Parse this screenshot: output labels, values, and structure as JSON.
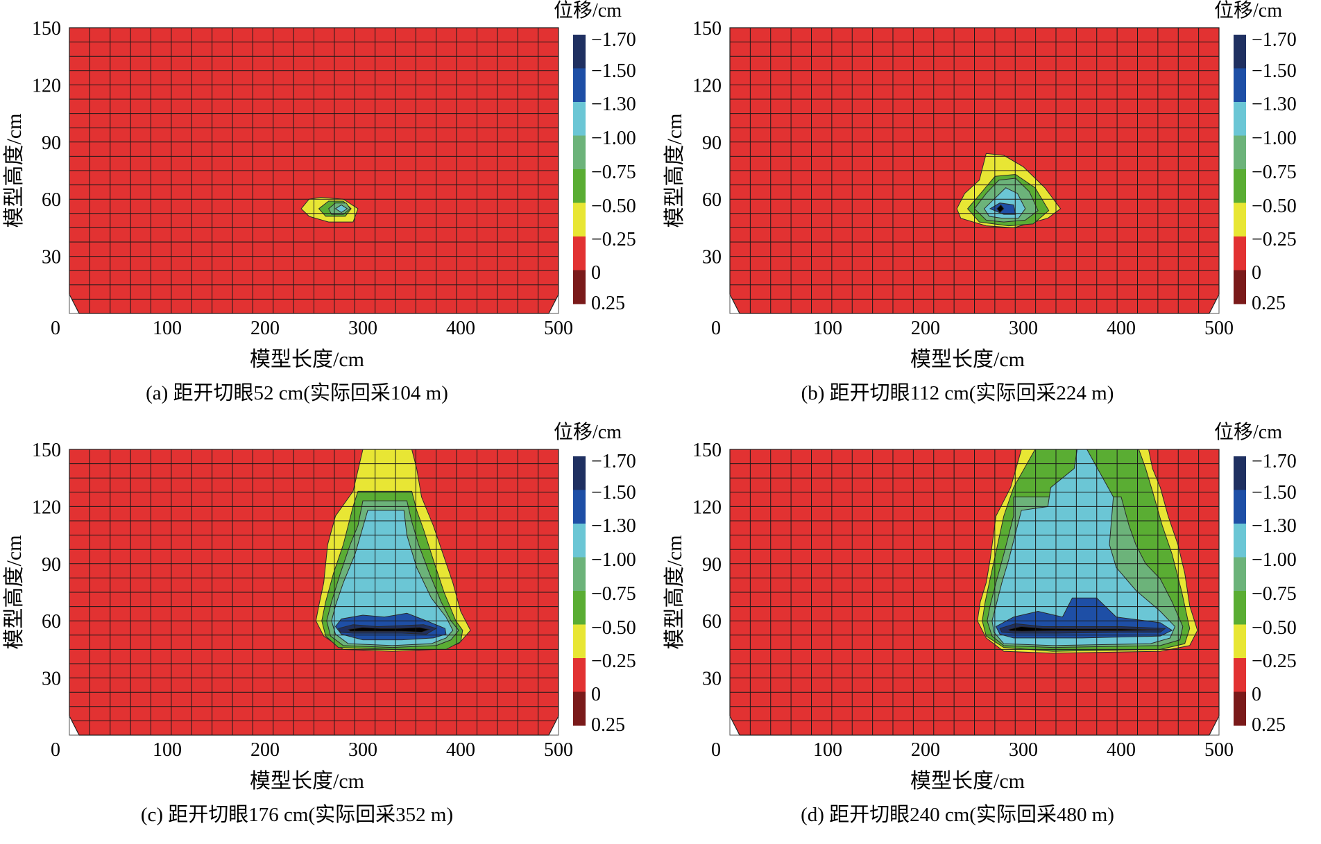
{
  "legend": {
    "title": "位移/cm",
    "labels": [
      "-1.70",
      "-1.50",
      "-1.30",
      "-1.00",
      "-0.75",
      "-0.50",
      "-0.25",
      "0",
      "0.25"
    ],
    "colors": [
      "#1f3061",
      "#1e4fa6",
      "#6bc6d5",
      "#6cb37a",
      "#5aad33",
      "#e8e634",
      "#e23232",
      "#7a1a1a"
    ],
    "level_thresholds": [
      -1.5,
      -1.3,
      -1.0,
      -0.75,
      -0.5,
      -0.25,
      0.0
    ]
  },
  "chart_data": [
    {
      "type": "heatmap",
      "caption": "(a)  距开切眼52 cm(实际回采104 m)",
      "xlabel": "模型长度/cm",
      "ylabel": "模型高度/cm",
      "xlim": [
        0,
        500
      ],
      "ylim": [
        0,
        150
      ],
      "xticks": [
        "0",
        "100",
        "200",
        "300",
        "400",
        "500"
      ],
      "yticks": [
        "30",
        "60",
        "90",
        "120",
        "150"
      ],
      "grid": true,
      "zones": [
        {
          "level": -0.25,
          "x": [
            237,
            245,
            257,
            280,
            295,
            290,
            265,
            245
          ],
          "y": [
            55,
            60,
            61,
            60,
            55,
            48,
            48,
            51
          ]
        },
        {
          "level": -0.5,
          "x": [
            255,
            265,
            280,
            288,
            282,
            262
          ],
          "y": [
            55,
            59,
            59,
            55,
            51,
            51
          ]
        },
        {
          "level": -0.75,
          "x": [
            265,
            272,
            283,
            287,
            280,
            268
          ],
          "y": [
            55,
            58,
            58,
            55,
            52,
            52
          ]
        },
        {
          "level": -1.0,
          "x": [
            272,
            278,
            284,
            278
          ],
          "y": [
            55,
            57,
            55,
            53
          ]
        }
      ]
    },
    {
      "type": "heatmap",
      "caption": "(b)  距开切眼112 cm(实际回采224 m)",
      "xlabel": "模型长度/cm",
      "ylabel": "模型高度/cm",
      "xlim": [
        0,
        500
      ],
      "ylim": [
        0,
        150
      ],
      "xticks": [
        "0",
        "100",
        "200",
        "300",
        "400",
        "500"
      ],
      "yticks": [
        "30",
        "60",
        "90",
        "120",
        "150"
      ],
      "grid": true,
      "zones": [
        {
          "level": -0.25,
          "x": [
            232,
            240,
            255,
            262,
            280,
            300,
            322,
            338,
            325,
            290,
            262,
            236
          ],
          "y": [
            55,
            63,
            70,
            84,
            83,
            77,
            66,
            55,
            50,
            45,
            46,
            50
          ]
        },
        {
          "level": -0.5,
          "x": [
            243,
            258,
            271,
            292,
            312,
            326,
            310,
            285,
            255
          ],
          "y": [
            55,
            64,
            72,
            73,
            66,
            54,
            47,
            46,
            48
          ]
        },
        {
          "level": -0.75,
          "x": [
            250,
            262,
            275,
            292,
            306,
            315,
            302,
            280,
            262
          ],
          "y": [
            55,
            63,
            70,
            71,
            64,
            54,
            49,
            48,
            49
          ]
        },
        {
          "level": -1.0,
          "x": [
            260,
            270,
            282,
            294,
            302,
            295,
            278,
            265
          ],
          "y": [
            55,
            60,
            66,
            63,
            55,
            50,
            50,
            51
          ]
        },
        {
          "level": -1.3,
          "x": [
            266,
            276,
            290,
            292,
            280
          ],
          "y": [
            55,
            58,
            57,
            52,
            52
          ]
        },
        {
          "level": -1.7,
          "x": [
            273,
            277,
            280,
            276
          ],
          "y": [
            55,
            57,
            55,
            53
          ]
        }
      ]
    },
    {
      "type": "heatmap",
      "caption": "(c)  距开切眼176 cm(实际回采352 m)",
      "xlabel": "模型长度/cm",
      "ylabel": "模型高度/cm",
      "xlim": [
        0,
        500
      ],
      "ylim": [
        0,
        150
      ],
      "xticks": [
        "0",
        "100",
        "200",
        "300",
        "400",
        "500"
      ],
      "yticks": [
        "30",
        "60",
        "90",
        "120",
        "150"
      ],
      "grid": true,
      "zones": [
        {
          "level": -0.25,
          "x": [
            252,
            255,
            260,
            264,
            272,
            290,
            300,
            350,
            355,
            360,
            372,
            382,
            392,
            400,
            410,
            398,
            375,
            330,
            280,
            260
          ],
          "y": [
            60,
            68,
            80,
            100,
            115,
            128,
            150,
            150,
            140,
            125,
            110,
            95,
            80,
            65,
            55,
            48,
            45,
            44,
            45,
            52
          ]
        },
        {
          "level": -0.5,
          "x": [
            258,
            262,
            270,
            280,
            290,
            295,
            350,
            355,
            362,
            372,
            383,
            395,
            402,
            400,
            385,
            330,
            275,
            262
          ],
          "y": [
            60,
            70,
            85,
            100,
            120,
            128,
            128,
            118,
            108,
            92,
            75,
            60,
            55,
            49,
            45,
            45,
            46,
            52
          ]
        },
        {
          "level": -0.75,
          "x": [
            263,
            268,
            277,
            287,
            295,
            300,
            345,
            350,
            357,
            368,
            380,
            390,
            398,
            390,
            375,
            330,
            280,
            267
          ],
          "y": [
            60,
            70,
            85,
            100,
            110,
            123,
            123,
            112,
            100,
            85,
            70,
            60,
            55,
            50,
            47,
            46,
            47,
            52
          ]
        },
        {
          "level": -1.0,
          "x": [
            268,
            272,
            280,
            292,
            305,
            342,
            345,
            355,
            370,
            385,
            392,
            385,
            370,
            330,
            285,
            272
          ],
          "y": [
            60,
            68,
            80,
            95,
            118,
            118,
            105,
            88,
            72,
            62,
            55,
            51,
            48,
            47,
            48,
            53
          ]
        },
        {
          "level": -1.3,
          "x": [
            272,
            278,
            300,
            322,
            345,
            365,
            384,
            385,
            372,
            340,
            300,
            278
          ],
          "y": [
            57,
            61,
            63,
            62,
            64,
            60,
            56,
            53,
            51,
            50,
            50,
            53
          ]
        },
        {
          "level": -1.5,
          "x": [
            275,
            290,
            315,
            340,
            362,
            375,
            365,
            340,
            315,
            290,
            277
          ],
          "y": [
            56,
            58,
            57,
            57.5,
            58,
            56,
            53,
            53.5,
            53.5,
            53.5,
            54
          ]
        },
        {
          "level": -1.7,
          "x": [
            285,
            300,
            318,
            335,
            358,
            368,
            360,
            340,
            318,
            300,
            287
          ],
          "y": [
            55.5,
            56.5,
            56,
            56,
            56.5,
            55.5,
            54,
            54.5,
            54.5,
            54.5,
            54.5
          ]
        }
      ]
    },
    {
      "type": "heatmap",
      "caption": "(d)  距开切眼240 cm(实际回采480 m)",
      "xlabel": "模型长度/cm",
      "ylabel": "模型高度/cm",
      "xlim": [
        0,
        500
      ],
      "ylim": [
        0,
        150
      ],
      "xticks": [
        "0",
        "100",
        "200",
        "300",
        "400",
        "500"
      ],
      "yticks": [
        "30",
        "60",
        "90",
        "120",
        "150"
      ],
      "grid": true,
      "zones": [
        {
          "level": -0.25,
          "x": [
            253,
            256,
            262,
            266,
            272,
            287,
            298,
            428,
            432,
            440,
            448,
            458,
            465,
            470,
            478,
            470,
            440,
            330,
            280,
            262
          ],
          "y": [
            60,
            70,
            80,
            92,
            115,
            130,
            150,
            150,
            140,
            130,
            115,
            100,
            85,
            68,
            55,
            47,
            44,
            43,
            44,
            51
          ]
        },
        {
          "level": -0.5,
          "x": [
            258,
            261,
            266,
            272,
            280,
            290,
            312,
            418,
            425,
            432,
            442,
            452,
            462,
            470,
            465,
            440,
            330,
            280,
            262
          ],
          "y": [
            60,
            70,
            82,
            96,
            115,
            130,
            150,
            150,
            140,
            128,
            110,
            95,
            75,
            56,
            48,
            45,
            44,
            46,
            52
          ]
        },
        {
          "level": -0.75,
          "x": [
            263,
            266,
            272,
            280,
            290,
            290,
            400,
            408,
            415,
            425,
            440,
            452,
            463,
            460,
            440,
            330,
            280,
            268
          ],
          "y": [
            60,
            68,
            80,
            95,
            115,
            125,
            125,
            110,
            100,
            90,
            82,
            70,
            57,
            50,
            47,
            46,
            47,
            52
          ]
        },
        {
          "level": -1.0,
          "x": [
            268,
            272,
            278,
            285,
            298,
            325,
            328,
            352,
            355,
            365,
            392,
            388,
            395,
            415,
            440,
            455,
            450,
            430,
            330,
            280,
            270
          ],
          "y": [
            60,
            68,
            80,
            92,
            118,
            120,
            130,
            140,
            150,
            150,
            125,
            100,
            88,
            76,
            65,
            57,
            51,
            48,
            47,
            48,
            54
          ]
        },
        {
          "level": -1.3,
          "x": [
            272,
            290,
            315,
            340,
            350,
            375,
            395,
            440,
            452,
            440,
            360,
            290,
            276
          ],
          "y": [
            57,
            62,
            65,
            62,
            72,
            72,
            62,
            59,
            55,
            52,
            51,
            51,
            53
          ]
        },
        {
          "level": -1.5,
          "x": [
            276,
            292,
            320,
            360,
            400,
            445,
            440,
            400,
            330,
            290,
            278
          ],
          "y": [
            56,
            58.5,
            57,
            57,
            57,
            56,
            54,
            54,
            53.5,
            53.5,
            54
          ]
        },
        {
          "level": -1.7,
          "x": [
            285,
            298,
            320,
            360,
            400,
            440,
            400,
            330,
            298,
            286
          ],
          "y": [
            55.5,
            57,
            56,
            55.8,
            55.8,
            55.3,
            54.8,
            54.8,
            54.5,
            54.8
          ]
        }
      ]
    }
  ]
}
